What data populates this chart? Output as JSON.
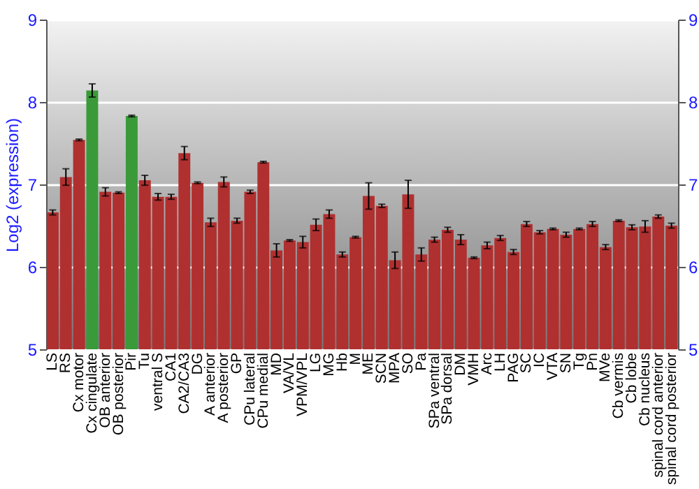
{
  "chart_data": {
    "type": "bar",
    "ylabel": "Log2 (expression)",
    "categories": [
      "LS",
      "RS",
      "Cx motor",
      "Cx cingulate",
      "OB anterior",
      "OB posterior",
      "Pir",
      "Tu",
      "ventral S",
      "CA1",
      "CA2/CA3",
      "DG",
      "A anterior",
      "A posterior",
      "GP",
      "CPu lateral",
      "CPu medial",
      "MD",
      "VA/VL",
      "VPM/VPL",
      "LG",
      "MG",
      "Hb",
      "M",
      "ME",
      "SCN",
      "MPA",
      "SO",
      "Pa",
      "SPa ventral",
      "SPa dorsal",
      "DM",
      "VMH",
      "Arc",
      "LH",
      "PAG",
      "SC",
      "IC",
      "VTA",
      "SN",
      "Tg",
      "Pn",
      "MVe",
      "Cb vermis",
      "Cb lobe",
      "Cb nucleus",
      "spinal cord anterior",
      "spinal cord posterior"
    ],
    "values": [
      6.66,
      7.09,
      7.54,
      8.14,
      6.91,
      6.9,
      7.83,
      7.05,
      6.85,
      6.85,
      7.38,
      7.02,
      6.54,
      7.03,
      6.56,
      6.91,
      7.27,
      6.2,
      6.32,
      6.3,
      6.51,
      6.64,
      6.15,
      6.36,
      6.86,
      6.74,
      6.08,
      6.88,
      6.15,
      6.33,
      6.45,
      6.33,
      6.11,
      6.26,
      6.35,
      6.18,
      6.52,
      6.42,
      6.46,
      6.39,
      6.46,
      6.52,
      6.24,
      6.56,
      6.48,
      6.49,
      6.61,
      6.5
    ],
    "errors": [
      0.03,
      0.1,
      0.01,
      0.08,
      0.05,
      0.01,
      0.01,
      0.06,
      0.04,
      0.03,
      0.08,
      0.01,
      0.05,
      0.06,
      0.03,
      0.02,
      0.01,
      0.08,
      0.01,
      0.07,
      0.07,
      0.05,
      0.03,
      0.01,
      0.16,
      0.02,
      0.1,
      0.17,
      0.08,
      0.03,
      0.03,
      0.06,
      0.01,
      0.04,
      0.03,
      0.03,
      0.03,
      0.02,
      0.01,
      0.03,
      0.01,
      0.03,
      0.03,
      0.01,
      0.03,
      0.07,
      0.02,
      0.03
    ],
    "colors": [
      "#b03030",
      "#b03030",
      "#b03030",
      "#3a9a3a",
      "#b03030",
      "#b03030",
      "#3a9a3a",
      "#b03030",
      "#b03030",
      "#b03030",
      "#b03030",
      "#b03030",
      "#b03030",
      "#b03030",
      "#b03030",
      "#b03030",
      "#b03030",
      "#b03030",
      "#b03030",
      "#b03030",
      "#b03030",
      "#b03030",
      "#b03030",
      "#b03030",
      "#b03030",
      "#b03030",
      "#b03030",
      "#b03030",
      "#b03030",
      "#b03030",
      "#b03030",
      "#b03030",
      "#b03030",
      "#b03030",
      "#b03030",
      "#b03030",
      "#b03030",
      "#b03030",
      "#b03030",
      "#b03030",
      "#b03030",
      "#b03030",
      "#b03030",
      "#b03030",
      "#b03030",
      "#b03030",
      "#b03030",
      "#b03030"
    ],
    "ylim": [
      5,
      9
    ],
    "yticks": [
      5,
      6,
      7,
      8,
      9
    ],
    "y2lim": [
      5,
      9
    ],
    "y2ticks": [
      5,
      6,
      7,
      8,
      9
    ],
    "grid": "y"
  }
}
